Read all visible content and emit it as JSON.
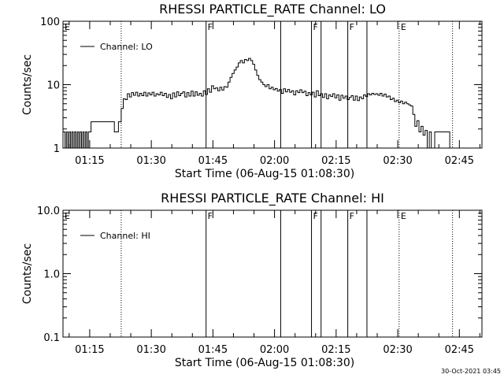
{
  "footer": {
    "timestamp": "30-Oct-2021 03:45"
  },
  "chart_data": [
    {
      "type": "line",
      "title": "RHESSI PARTICLE_RATE Channel: LO",
      "xlabel": "Start Time (06-Aug-15 01:08:30)",
      "ylabel": "Counts/sec",
      "y_scale": "log",
      "ylim": [
        1,
        100
      ],
      "y_ticks": [
        {
          "value": 1,
          "label": "1"
        },
        {
          "value": 10,
          "label": "10"
        },
        {
          "value": 100,
          "label": "100"
        }
      ],
      "xlim": [
        "01:08:30",
        "02:50:30"
      ],
      "x_ticks": [
        "01:15",
        "01:30",
        "01:45",
        "02:00",
        "02:15",
        "02:30",
        "02:45"
      ],
      "legend": {
        "position": "top-left",
        "entries": [
          "Channel: LO"
        ]
      },
      "markers": [
        {
          "time": "01:22:40",
          "style": "dotted",
          "label": ""
        },
        {
          "time": "01:43:20",
          "style": "solid",
          "label": ""
        },
        {
          "time": "02:01:30",
          "style": "solid",
          "label": ""
        },
        {
          "time": "02:09:00",
          "style": "solid",
          "label": ""
        },
        {
          "time": "02:11:20",
          "style": "solid",
          "label": ""
        },
        {
          "time": "02:17:50",
          "style": "solid",
          "label": ""
        },
        {
          "time": "02:22:30",
          "style": "solid",
          "label": ""
        },
        {
          "time": "02:30:20",
          "style": "dotted",
          "label": ""
        },
        {
          "time": "02:43:20",
          "style": "dotted",
          "label": ""
        }
      ],
      "edge_labels": [
        {
          "time": "01:08:30",
          "label": "E"
        },
        {
          "time": "01:43:20",
          "label": "F"
        },
        {
          "time": "02:09:00",
          "label": "F"
        },
        {
          "time": "02:17:50",
          "label": "F"
        },
        {
          "time": "02:30:20",
          "label": "E"
        }
      ],
      "series": [
        {
          "name": "Channel: LO",
          "data": [
            [
              "01:08:30",
              1.8
            ],
            [
              "01:09:00",
              1.0
            ],
            [
              "01:09:20",
              1.8
            ],
            [
              "01:09:40",
              1.0
            ],
            [
              "01:10:00",
              1.8
            ],
            [
              "01:10:20",
              1.0
            ],
            [
              "01:10:40",
              1.8
            ],
            [
              "01:11:00",
              1.0
            ],
            [
              "01:11:20",
              1.8
            ],
            [
              "01:11:40",
              1.0
            ],
            [
              "01:12:00",
              1.8
            ],
            [
              "01:12:20",
              1.0
            ],
            [
              "01:12:40",
              1.8
            ],
            [
              "01:13:00",
              1.0
            ],
            [
              "01:13:20",
              1.8
            ],
            [
              "01:13:40",
              1.0
            ],
            [
              "01:14:00",
              1.8
            ],
            [
              "01:14:20",
              1.0
            ],
            [
              "01:14:40",
              1.8
            ],
            [
              "01:15:00",
              1.8
            ],
            [
              "01:15:20",
              2.6
            ],
            [
              "01:16:00",
              2.6
            ],
            [
              "01:17:00",
              2.6
            ],
            [
              "01:18:00",
              2.6
            ],
            [
              "01:19:00",
              2.6
            ],
            [
              "01:20:00",
              2.6
            ],
            [
              "01:20:40",
              2.6
            ],
            [
              "01:21:00",
              1.8
            ],
            [
              "01:21:40",
              1.8
            ],
            [
              "01:22:00",
              2.6
            ],
            [
              "01:22:40",
              4.2
            ],
            [
              "01:23:10",
              6.0
            ],
            [
              "01:23:40",
              5.8
            ],
            [
              "01:24:10",
              7.2
            ],
            [
              "01:24:40",
              6.4
            ],
            [
              "01:25:10",
              7.5
            ],
            [
              "01:25:40",
              6.8
            ],
            [
              "01:26:10",
              7.6
            ],
            [
              "01:26:40",
              6.6
            ],
            [
              "01:27:10",
              7.3
            ],
            [
              "01:27:40",
              6.7
            ],
            [
              "01:28:10",
              7.6
            ],
            [
              "01:28:40",
              6.6
            ],
            [
              "01:29:10",
              7.4
            ],
            [
              "01:29:40",
              6.9
            ],
            [
              "01:30:10",
              7.6
            ],
            [
              "01:30:40",
              6.6
            ],
            [
              "01:31:10",
              7.2
            ],
            [
              "01:31:40",
              6.9
            ],
            [
              "01:32:10",
              7.6
            ],
            [
              "01:32:40",
              6.7
            ],
            [
              "01:33:10",
              7.3
            ],
            [
              "01:33:40",
              6.3
            ],
            [
              "01:34:10",
              7.0
            ],
            [
              "01:34:40",
              6.0
            ],
            [
              "01:35:10",
              7.4
            ],
            [
              "01:35:40",
              6.4
            ],
            [
              "01:36:10",
              7.7
            ],
            [
              "01:36:40",
              6.7
            ],
            [
              "01:37:10",
              7.3
            ],
            [
              "01:37:40",
              7.7
            ],
            [
              "01:38:10",
              6.4
            ],
            [
              "01:38:40",
              7.5
            ],
            [
              "01:39:10",
              6.6
            ],
            [
              "01:39:40",
              7.9
            ],
            [
              "01:40:10",
              6.6
            ],
            [
              "01:40:40",
              7.7
            ],
            [
              "01:41:10",
              6.8
            ],
            [
              "01:41:40",
              7.3
            ],
            [
              "01:42:10",
              6.6
            ],
            [
              "01:42:40",
              8.0
            ],
            [
              "01:43:10",
              7.0
            ],
            [
              "01:43:40",
              8.6
            ],
            [
              "01:44:10",
              7.6
            ],
            [
              "01:44:40",
              9.6
            ],
            [
              "01:45:10",
              8.6
            ],
            [
              "01:45:40",
              8.9
            ],
            [
              "01:46:10",
              8.0
            ],
            [
              "01:46:40",
              9.1
            ],
            [
              "01:47:10",
              8.2
            ],
            [
              "01:47:40",
              9.3
            ],
            [
              "01:48:10",
              9.1
            ],
            [
              "01:48:40",
              11.0
            ],
            [
              "01:49:10",
              13.0
            ],
            [
              "01:49:40",
              15.0
            ],
            [
              "01:50:10",
              17.0
            ],
            [
              "01:50:40",
              19.0
            ],
            [
              "01:51:10",
              22.0
            ],
            [
              "01:51:40",
              24.0
            ],
            [
              "01:52:10",
              22.0
            ],
            [
              "01:52:40",
              25.0
            ],
            [
              "01:53:10",
              24.0
            ],
            [
              "01:53:40",
              26.0
            ],
            [
              "01:54:10",
              24.0
            ],
            [
              "01:54:40",
              21.0
            ],
            [
              "01:55:10",
              17.0
            ],
            [
              "01:55:40",
              14.0
            ],
            [
              "01:56:10",
              12.0
            ],
            [
              "01:56:40",
              11.0
            ],
            [
              "01:57:10",
              10.0
            ],
            [
              "01:57:40",
              9.3
            ],
            [
              "01:58:10",
              10.0
            ],
            [
              "01:58:40",
              8.6
            ],
            [
              "01:59:10",
              9.1
            ],
            [
              "01:59:40",
              8.3
            ],
            [
              "02:00:10",
              8.7
            ],
            [
              "02:00:40",
              7.9
            ],
            [
              "02:01:10",
              8.4
            ],
            [
              "02:01:40",
              7.3
            ],
            [
              "02:02:10",
              8.6
            ],
            [
              "02:02:40",
              7.7
            ],
            [
              "02:03:10",
              8.4
            ],
            [
              "02:03:40",
              7.6
            ],
            [
              "02:04:10",
              8.0
            ],
            [
              "02:04:40",
              6.9
            ],
            [
              "02:05:10",
              8.0
            ],
            [
              "02:05:40",
              7.5
            ],
            [
              "02:06:10",
              8.3
            ],
            [
              "02:06:40",
              7.5
            ],
            [
              "02:07:10",
              7.9
            ],
            [
              "02:07:40",
              6.7
            ],
            [
              "02:08:10",
              7.5
            ],
            [
              "02:08:40",
              6.9
            ],
            [
              "02:09:10",
              7.6
            ],
            [
              "02:09:40",
              6.4
            ],
            [
              "02:10:10",
              8.0
            ],
            [
              "02:10:40",
              6.7
            ],
            [
              "02:11:10",
              7.2
            ],
            [
              "02:11:40",
              6.3
            ],
            [
              "02:12:10",
              7.2
            ],
            [
              "02:12:40",
              6.0
            ],
            [
              "02:13:10",
              6.9
            ],
            [
              "02:13:40",
              6.5
            ],
            [
              "02:14:10",
              7.2
            ],
            [
              "02:14:40",
              6.2
            ],
            [
              "02:15:10",
              6.9
            ],
            [
              "02:15:40",
              5.7
            ],
            [
              "02:16:10",
              6.8
            ],
            [
              "02:16:40",
              6.1
            ],
            [
              "02:17:10",
              6.6
            ],
            [
              "02:17:40",
              5.8
            ],
            [
              "02:18:10",
              6.3
            ],
            [
              "02:18:40",
              6.7
            ],
            [
              "02:19:10",
              5.7
            ],
            [
              "02:19:40",
              6.6
            ],
            [
              "02:20:10",
              5.6
            ],
            [
              "02:20:40",
              6.4
            ],
            [
              "02:21:10",
              6.0
            ],
            [
              "02:21:40",
              6.9
            ],
            [
              "02:22:10",
              6.5
            ],
            [
              "02:22:40",
              7.2
            ],
            [
              "02:23:10",
              6.9
            ],
            [
              "02:23:40",
              7.3
            ],
            [
              "02:24:10",
              7.0
            ],
            [
              "02:24:40",
              7.2
            ],
            [
              "02:25:10",
              6.8
            ],
            [
              "02:25:40",
              7.3
            ],
            [
              "02:26:10",
              6.6
            ],
            [
              "02:26:40",
              7.1
            ],
            [
              "02:27:10",
              6.4
            ],
            [
              "02:27:40",
              6.6
            ],
            [
              "02:28:10",
              5.8
            ],
            [
              "02:28:40",
              6.1
            ],
            [
              "02:29:10",
              5.4
            ],
            [
              "02:29:40",
              5.7
            ],
            [
              "02:30:10",
              5.2
            ],
            [
              "02:30:40",
              5.5
            ],
            [
              "02:31:10",
              5.0
            ],
            [
              "02:31:40",
              5.3
            ],
            [
              "02:32:10",
              5.0
            ],
            [
              "02:32:40",
              4.8
            ],
            [
              "02:33:10",
              4.6
            ],
            [
              "02:33:40",
              3.4
            ],
            [
              "02:34:10",
              2.2
            ],
            [
              "02:34:40",
              2.7
            ],
            [
              "02:35:10",
              1.8
            ],
            [
              "02:35:40",
              2.2
            ],
            [
              "02:36:10",
              1.6
            ],
            [
              "02:36:40",
              1.9
            ],
            [
              "02:37:10",
              1.0
            ],
            [
              "02:37:40",
              1.8
            ],
            [
              "02:38:10",
              1.0
            ],
            [
              "02:38:30",
              1.0
            ],
            [
              "02:39:00",
              1.8
            ],
            [
              "02:39:40",
              1.8
            ],
            [
              "02:40:20",
              1.8
            ],
            [
              "02:41:00",
              1.8
            ],
            [
              "02:41:40",
              1.8
            ],
            [
              "02:42:20",
              1.8
            ],
            [
              "02:42:40",
              1.0
            ]
          ]
        }
      ]
    },
    {
      "type": "line",
      "title": "RHESSI PARTICLE_RATE Channel: HI",
      "xlabel": "Start Time (06-Aug-15 01:08:30)",
      "ylabel": "Counts/sec",
      "y_scale": "log",
      "ylim": [
        0.1,
        10
      ],
      "y_ticks": [
        {
          "value": 0.1,
          "label": "0.1"
        },
        {
          "value": 1,
          "label": "1.0"
        },
        {
          "value": 10,
          "label": "10.0"
        }
      ],
      "xlim": [
        "01:08:30",
        "02:50:30"
      ],
      "x_ticks": [
        "01:15",
        "01:30",
        "01:45",
        "02:00",
        "02:15",
        "02:30",
        "02:45"
      ],
      "legend": {
        "position": "top-left",
        "entries": [
          "Channel: HI"
        ]
      },
      "markers": [
        {
          "time": "01:22:40",
          "style": "dotted",
          "label": ""
        },
        {
          "time": "01:43:20",
          "style": "solid",
          "label": ""
        },
        {
          "time": "02:01:30",
          "style": "solid",
          "label": ""
        },
        {
          "time": "02:09:00",
          "style": "solid",
          "label": ""
        },
        {
          "time": "02:11:20",
          "style": "solid",
          "label": ""
        },
        {
          "time": "02:17:50",
          "style": "solid",
          "label": ""
        },
        {
          "time": "02:22:30",
          "style": "solid",
          "label": ""
        },
        {
          "time": "02:30:20",
          "style": "dotted",
          "label": ""
        },
        {
          "time": "02:43:20",
          "style": "dotted",
          "label": ""
        }
      ],
      "edge_labels": [
        {
          "time": "01:08:30",
          "label": "E"
        },
        {
          "time": "01:43:20",
          "label": "F"
        },
        {
          "time": "02:09:00",
          "label": "F"
        },
        {
          "time": "02:17:50",
          "label": "F"
        },
        {
          "time": "02:30:20",
          "label": "E"
        }
      ],
      "series": [
        {
          "name": "Channel: HI",
          "data": []
        }
      ]
    }
  ]
}
